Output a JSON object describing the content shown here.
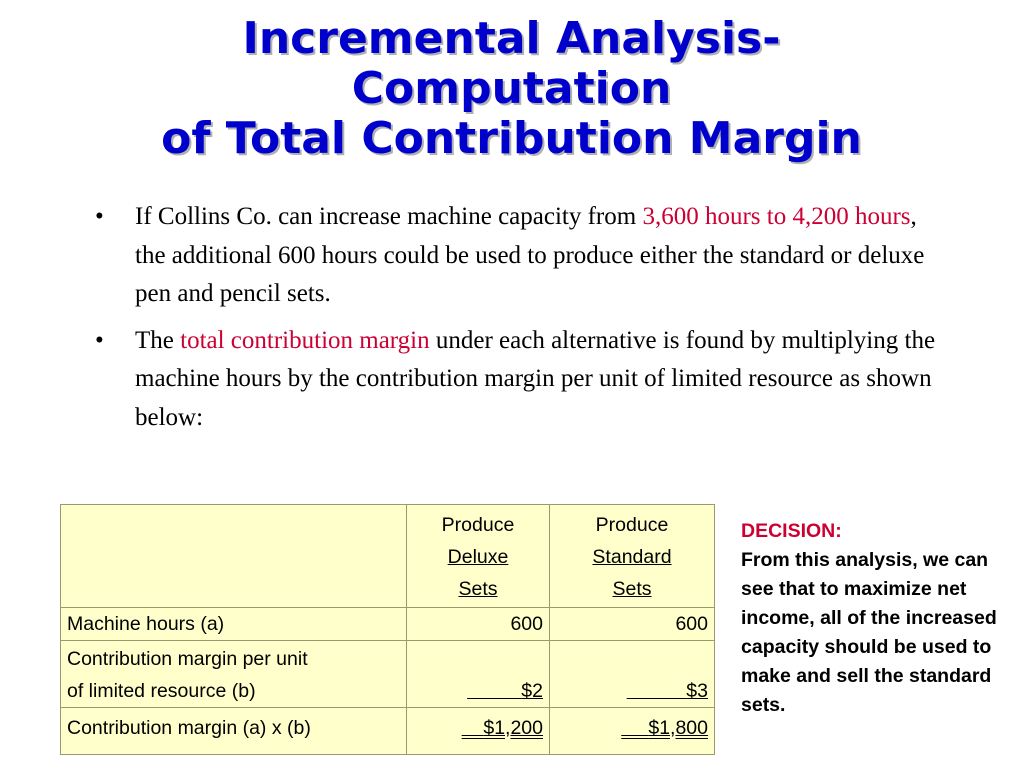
{
  "title": {
    "line1": "Incremental Analysis-",
    "line2": "Computation",
    "line3": "of Total Contribution Margin"
  },
  "bullets": [
    {
      "pre": "If Collins Co. can increase machine capacity from ",
      "highlight": "3,600 hours to 4,200 hours",
      "post": ", the additional 600 hours could be used to produce either the standard or deluxe pen and pencil sets."
    },
    {
      "pre": "The ",
      "highlight": "total contribution margin",
      "post": " under each alternative is found by multiplying the machine hours by the contribution margin per unit of limited resource as shown below:"
    }
  ],
  "bullet_glyph": "•",
  "table": {
    "columns": [
      {
        "line1": "Produce",
        "line2": "Deluxe",
        "line3": "Sets"
      },
      {
        "line1": "Produce",
        "line2": "Standard",
        "line3": "Sets"
      }
    ],
    "rows": [
      {
        "label_line1": "Machine hours (a)",
        "label_line2": "",
        "values": [
          "600",
          "600"
        ]
      },
      {
        "label_line1": "Contribution margin per unit",
        "label_line2": "of limited  resource (b)",
        "values": [
          "$2",
          "$3"
        ]
      },
      {
        "label_line1": "Contribution margin (a) x (b)",
        "label_line2": "",
        "values": [
          "$1,200",
          "$1,800"
        ]
      }
    ]
  },
  "decision": {
    "title": "DECISION:",
    "body": "From this analysis, we can see that to maximize net income, all of the increased capacity should be used to make and sell the standard sets."
  },
  "colors": {
    "title": "#0000cc",
    "accent": "#cc0033",
    "table_bg": "#ffffcc"
  }
}
